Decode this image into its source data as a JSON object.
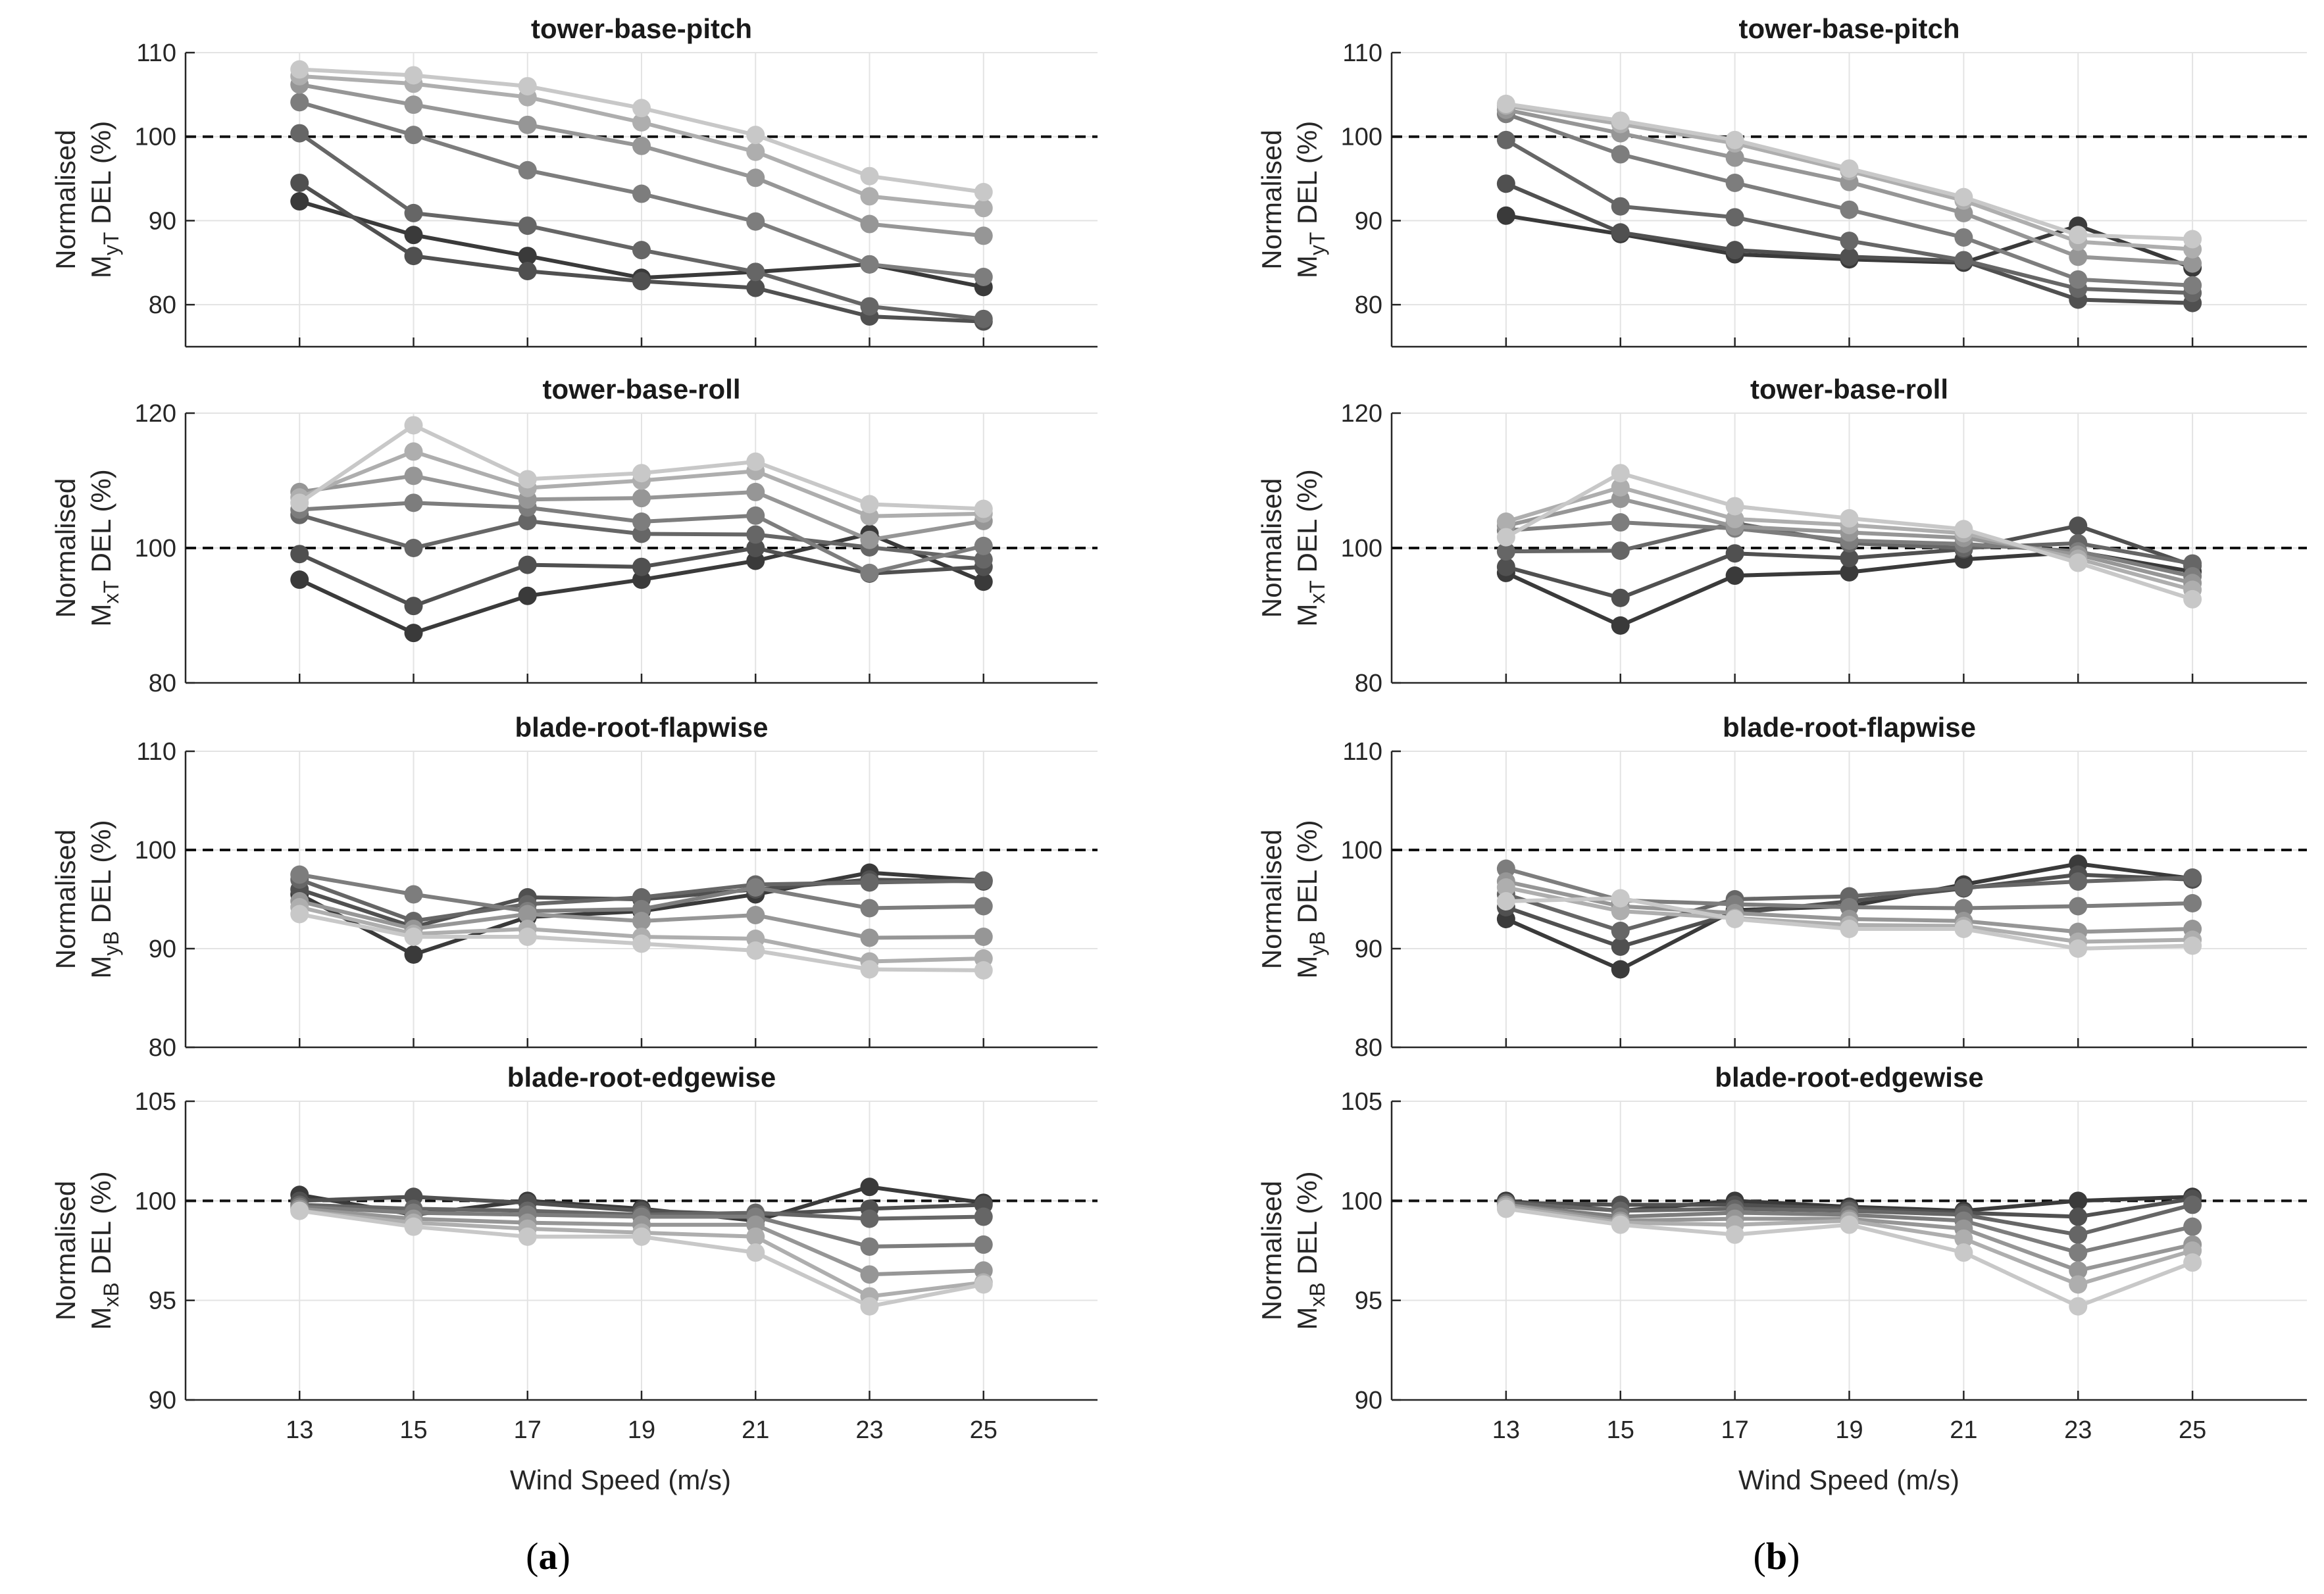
{
  "figure": {
    "xlabel": "Wind Speed (m/s)"
  },
  "chart_data": [
    {
      "type": "line",
      "column": "a",
      "title": "tower-base-pitch",
      "ylabel_top": "Normalised",
      "ylabel_main": "M",
      "ylabel_sub": "yT",
      "ylabel_tail": " DEL (%)",
      "ylim": [
        75,
        110
      ],
      "yticks": [
        80,
        90,
        100,
        110
      ],
      "reference": 100,
      "x": [
        13,
        15,
        17,
        19,
        21,
        23,
        25
      ],
      "grid": true,
      "series": [
        {
          "name": "s1",
          "color": "#3a3a3a",
          "values": [
            92.3,
            88.3,
            85.8,
            83.2,
            83.9,
            84.8,
            82.1
          ]
        },
        {
          "name": "s2",
          "color": "#505050",
          "values": [
            94.5,
            85.8,
            84.0,
            82.8,
            82.0,
            78.6,
            78.0
          ]
        },
        {
          "name": "s3",
          "color": "#666666",
          "values": [
            100.4,
            90.9,
            89.4,
            86.5,
            83.9,
            79.8,
            78.3
          ]
        },
        {
          "name": "s4",
          "color": "#7d7d7d",
          "values": [
            104.1,
            100.2,
            96.0,
            93.2,
            89.9,
            84.8,
            83.3
          ]
        },
        {
          "name": "s5",
          "color": "#969696",
          "values": [
            106.2,
            103.8,
            101.4,
            98.9,
            95.1,
            89.6,
            88.2
          ]
        },
        {
          "name": "s6",
          "color": "#aeaeae",
          "values": [
            107.2,
            106.3,
            104.7,
            101.7,
            98.2,
            92.9,
            91.5
          ]
        },
        {
          "name": "s7",
          "color": "#c8c8c8",
          "values": [
            108.0,
            107.3,
            106.0,
            103.4,
            100.2,
            95.3,
            93.4
          ]
        }
      ]
    },
    {
      "type": "line",
      "column": "a",
      "title": "tower-base-roll",
      "ylabel_top": "Normalised",
      "ylabel_main": "M",
      "ylabel_sub": "xT",
      "ylabel_tail": " DEL (%)",
      "ylim": [
        80,
        120
      ],
      "yticks": [
        80,
        100,
        120
      ],
      "reference": 100,
      "x": [
        13,
        15,
        17,
        19,
        21,
        23,
        25
      ],
      "grid": true,
      "series": [
        {
          "name": "s1",
          "color": "#3a3a3a",
          "values": [
            95.3,
            87.4,
            92.9,
            95.3,
            98.1,
            102.1,
            95.0
          ]
        },
        {
          "name": "s2",
          "color": "#505050",
          "values": [
            99.1,
            91.4,
            97.5,
            97.2,
            100.0,
            96.2,
            97.2
          ]
        },
        {
          "name": "s3",
          "color": "#666666",
          "values": [
            104.9,
            100.0,
            104.0,
            102.1,
            102.0,
            100.1,
            98.3
          ]
        },
        {
          "name": "s4",
          "color": "#7d7d7d",
          "values": [
            105.7,
            106.7,
            106.0,
            103.9,
            104.8,
            96.3,
            100.3
          ]
        },
        {
          "name": "s5",
          "color": "#969696",
          "values": [
            108.3,
            110.7,
            107.2,
            107.4,
            108.3,
            101.2,
            104.0
          ]
        },
        {
          "name": "s6",
          "color": "#aeaeae",
          "values": [
            107.5,
            114.3,
            108.9,
            110.0,
            111.4,
            104.7,
            105.1
          ]
        },
        {
          "name": "s7",
          "color": "#c8c8c8",
          "values": [
            106.7,
            118.2,
            110.2,
            111.1,
            112.8,
            106.5,
            105.8
          ]
        }
      ]
    },
    {
      "type": "line",
      "column": "a",
      "title": "blade-root-flapwise",
      "ylabel_top": "Normalised",
      "ylabel_main": "M",
      "ylabel_sub": "yB",
      "ylabel_tail": " DEL (%)",
      "ylim": [
        80,
        110
      ],
      "yticks": [
        80,
        90,
        100,
        110
      ],
      "reference": 100,
      "x": [
        13,
        15,
        17,
        19,
        21,
        23,
        25
      ],
      "grid": true,
      "series": [
        {
          "name": "s1",
          "color": "#3a3a3a",
          "values": [
            95.5,
            89.4,
            93.2,
            93.8,
            95.5,
            97.7,
            96.9
          ]
        },
        {
          "name": "s2",
          "color": "#505050",
          "values": [
            96.0,
            92.2,
            95.2,
            95.0,
            96.0,
            97.0,
            96.8
          ]
        },
        {
          "name": "s3",
          "color": "#666666",
          "values": [
            97.0,
            92.8,
            94.5,
            95.2,
            96.5,
            96.7,
            96.9
          ]
        },
        {
          "name": "s4",
          "color": "#7d7d7d",
          "values": [
            97.5,
            95.5,
            93.8,
            94.0,
            96.2,
            94.1,
            94.3
          ]
        },
        {
          "name": "s5",
          "color": "#969696",
          "values": [
            94.8,
            92.0,
            93.5,
            92.8,
            93.4,
            91.1,
            91.2
          ]
        },
        {
          "name": "s6",
          "color": "#aeaeae",
          "values": [
            94.2,
            91.5,
            92.0,
            91.2,
            91.0,
            88.7,
            89.0
          ]
        },
        {
          "name": "s7",
          "color": "#c8c8c8",
          "values": [
            93.5,
            91.2,
            91.2,
            90.5,
            89.8,
            87.9,
            87.8
          ]
        }
      ]
    },
    {
      "type": "line",
      "column": "a",
      "title": "blade-root-edgewise",
      "ylabel_top": "Normalised",
      "ylabel_main": "M",
      "ylabel_sub": "xB",
      "ylabel_tail": " DEL (%)",
      "ylim": [
        90,
        105
      ],
      "yticks": [
        90,
        95,
        100,
        105
      ],
      "reference": 100,
      "x": [
        13,
        15,
        17,
        19,
        21,
        23,
        25
      ],
      "grid": true,
      "series": [
        {
          "name": "s1",
          "color": "#3a3a3a",
          "values": [
            100.3,
            99.3,
            100.0,
            99.6,
            99.0,
            100.7,
            99.9
          ]
        },
        {
          "name": "s2",
          "color": "#505050",
          "values": [
            100.0,
            100.2,
            99.9,
            99.5,
            99.3,
            99.6,
            99.8
          ]
        },
        {
          "name": "s3",
          "color": "#666666",
          "values": [
            99.8,
            99.6,
            99.5,
            99.3,
            99.4,
            99.1,
            99.2
          ]
        },
        {
          "name": "s4",
          "color": "#7d7d7d",
          "values": [
            99.7,
            99.4,
            99.3,
            99.2,
            99.2,
            97.7,
            97.8
          ]
        },
        {
          "name": "s5",
          "color": "#969696",
          "values": [
            99.6,
            99.1,
            98.9,
            98.8,
            98.8,
            96.3,
            96.5
          ]
        },
        {
          "name": "s6",
          "color": "#aeaeae",
          "values": [
            99.5,
            98.9,
            98.6,
            98.4,
            98.2,
            95.2,
            95.9
          ]
        },
        {
          "name": "s7",
          "color": "#c8c8c8",
          "values": [
            99.5,
            98.7,
            98.2,
            98.2,
            97.4,
            94.7,
            95.8
          ]
        }
      ]
    },
    {
      "type": "line",
      "column": "b",
      "title": "tower-base-pitch",
      "ylabel_top": "Normalised",
      "ylabel_main": "M",
      "ylabel_sub": "yT",
      "ylabel_tail": " DEL (%)",
      "ylim": [
        75,
        110
      ],
      "yticks": [
        80,
        90,
        100,
        110
      ],
      "reference": 100,
      "x": [
        13,
        15,
        17,
        19,
        21,
        23,
        25
      ],
      "grid": true,
      "series": [
        {
          "name": "s1",
          "color": "#3a3a3a",
          "values": [
            90.6,
            88.4,
            86.0,
            85.4,
            85.0,
            89.4,
            84.4
          ]
        },
        {
          "name": "s2",
          "color": "#505050",
          "values": [
            94.4,
            88.6,
            86.5,
            85.7,
            85.2,
            80.6,
            80.2
          ]
        },
        {
          "name": "s3",
          "color": "#666666",
          "values": [
            99.6,
            91.7,
            90.4,
            87.6,
            85.3,
            81.9,
            81.4
          ]
        },
        {
          "name": "s4",
          "color": "#7d7d7d",
          "values": [
            102.7,
            97.9,
            94.5,
            91.3,
            88.0,
            83.0,
            82.3
          ]
        },
        {
          "name": "s5",
          "color": "#969696",
          "values": [
            103.2,
            100.4,
            97.5,
            94.6,
            90.9,
            85.7,
            84.9
          ]
        },
        {
          "name": "s6",
          "color": "#aeaeae",
          "values": [
            103.7,
            101.5,
            99.2,
            95.9,
            92.4,
            87.5,
            86.6
          ]
        },
        {
          "name": "s7",
          "color": "#c8c8c8",
          "values": [
            103.9,
            101.9,
            99.6,
            96.2,
            92.8,
            88.3,
            87.8
          ]
        }
      ]
    },
    {
      "type": "line",
      "column": "b",
      "title": "tower-base-roll",
      "ylabel_top": "Normalised",
      "ylabel_main": "M",
      "ylabel_sub": "xT",
      "ylabel_tail": " DEL (%)",
      "ylim": [
        80,
        120
      ],
      "yticks": [
        80,
        100,
        120
      ],
      "reference": 100,
      "x": [
        13,
        15,
        17,
        19,
        21,
        23,
        25
      ],
      "grid": true,
      "series": [
        {
          "name": "s1",
          "color": "#3a3a3a",
          "values": [
            96.3,
            88.5,
            95.9,
            96.4,
            98.3,
            99.4,
            96.5
          ]
        },
        {
          "name": "s2",
          "color": "#505050",
          "values": [
            97.2,
            92.6,
            99.2,
            98.5,
            99.8,
            103.3,
            97.4
          ]
        },
        {
          "name": "s3",
          "color": "#666666",
          "values": [
            99.5,
            99.6,
            103.7,
            100.7,
            100.0,
            100.7,
            97.7
          ]
        },
        {
          "name": "s4",
          "color": "#7d7d7d",
          "values": [
            102.6,
            103.8,
            102.9,
            101.1,
            100.6,
            99.5,
            95.8
          ]
        },
        {
          "name": "s5",
          "color": "#969696",
          "values": [
            103.3,
            107.3,
            103.2,
            102.3,
            101.5,
            99.0,
            94.8
          ]
        },
        {
          "name": "s6",
          "color": "#aeaeae",
          "values": [
            103.9,
            109.0,
            104.3,
            103.4,
            102.2,
            98.4,
            93.8
          ]
        },
        {
          "name": "s7",
          "color": "#c8c8c8",
          "values": [
            101.6,
            111.1,
            106.2,
            104.4,
            102.8,
            97.8,
            92.4
          ]
        }
      ]
    },
    {
      "type": "line",
      "column": "b",
      "title": "blade-root-flapwise",
      "ylabel_top": "Normalised",
      "ylabel_main": "M",
      "ylabel_sub": "yB",
      "ylabel_tail": " DEL (%)",
      "ylim": [
        80,
        110
      ],
      "yticks": [
        80,
        90,
        100,
        110
      ],
      "reference": 100,
      "x": [
        13,
        15,
        17,
        19,
        21,
        23,
        25
      ],
      "grid": true,
      "series": [
        {
          "name": "s1",
          "color": "#3a3a3a",
          "values": [
            93.0,
            87.9,
            93.9,
            94.3,
            96.5,
            98.6,
            97.1
          ]
        },
        {
          "name": "s2",
          "color": "#505050",
          "values": [
            94.2,
            90.2,
            93.6,
            94.8,
            96.1,
            97.5,
            97.0
          ]
        },
        {
          "name": "s3",
          "color": "#666666",
          "values": [
            95.5,
            91.8,
            95.0,
            95.3,
            96.2,
            96.8,
            97.2
          ]
        },
        {
          "name": "s4",
          "color": "#7d7d7d",
          "values": [
            98.1,
            94.9,
            94.5,
            94.2,
            94.1,
            94.3,
            94.6
          ]
        },
        {
          "name": "s5",
          "color": "#969696",
          "values": [
            96.8,
            94.3,
            93.6,
            93.0,
            92.8,
            91.7,
            92.0
          ]
        },
        {
          "name": "s6",
          "color": "#aeaeae",
          "values": [
            96.2,
            93.8,
            93.1,
            92.4,
            92.3,
            90.7,
            90.9
          ]
        },
        {
          "name": "s7",
          "color": "#c8c8c8",
          "values": [
            94.8,
            95.1,
            93.0,
            92.0,
            92.0,
            90.0,
            90.3
          ]
        }
      ]
    },
    {
      "type": "line",
      "column": "b",
      "title": "blade-root-edgewise",
      "ylabel_top": "Normalised",
      "ylabel_main": "M",
      "ylabel_sub": "xB",
      "ylabel_tail": " DEL (%)",
      "ylim": [
        90,
        105
      ],
      "yticks": [
        90,
        95,
        100,
        105
      ],
      "reference": 100,
      "x": [
        13,
        15,
        17,
        19,
        21,
        23,
        25
      ],
      "grid": true,
      "series": [
        {
          "name": "s1",
          "color": "#3a3a3a",
          "values": [
            100.0,
            99.5,
            100.0,
            99.7,
            99.5,
            100.0,
            100.2
          ]
        },
        {
          "name": "s2",
          "color": "#505050",
          "values": [
            99.9,
            99.8,
            99.8,
            99.6,
            99.4,
            99.2,
            100.1
          ]
        },
        {
          "name": "s3",
          "color": "#666666",
          "values": [
            99.9,
            99.5,
            99.6,
            99.5,
            99.3,
            98.3,
            99.8
          ]
        },
        {
          "name": "s4",
          "color": "#7d7d7d",
          "values": [
            99.8,
            99.2,
            99.4,
            99.3,
            99.0,
            97.4,
            98.7
          ]
        },
        {
          "name": "s5",
          "color": "#969696",
          "values": [
            99.8,
            99.0,
            99.1,
            99.1,
            98.6,
            96.5,
            97.8
          ]
        },
        {
          "name": "s6",
          "color": "#aeaeae",
          "values": [
            99.7,
            98.9,
            98.8,
            99.0,
            98.1,
            95.8,
            97.5
          ]
        },
        {
          "name": "s7",
          "color": "#c8c8c8",
          "values": [
            99.6,
            98.8,
            98.3,
            98.8,
            97.4,
            94.7,
            96.9
          ]
        }
      ]
    }
  ],
  "captions": [
    {
      "open": "(",
      "letter": "a",
      "close": ")"
    },
    {
      "open": "(",
      "letter": "b",
      "close": ")"
    }
  ]
}
